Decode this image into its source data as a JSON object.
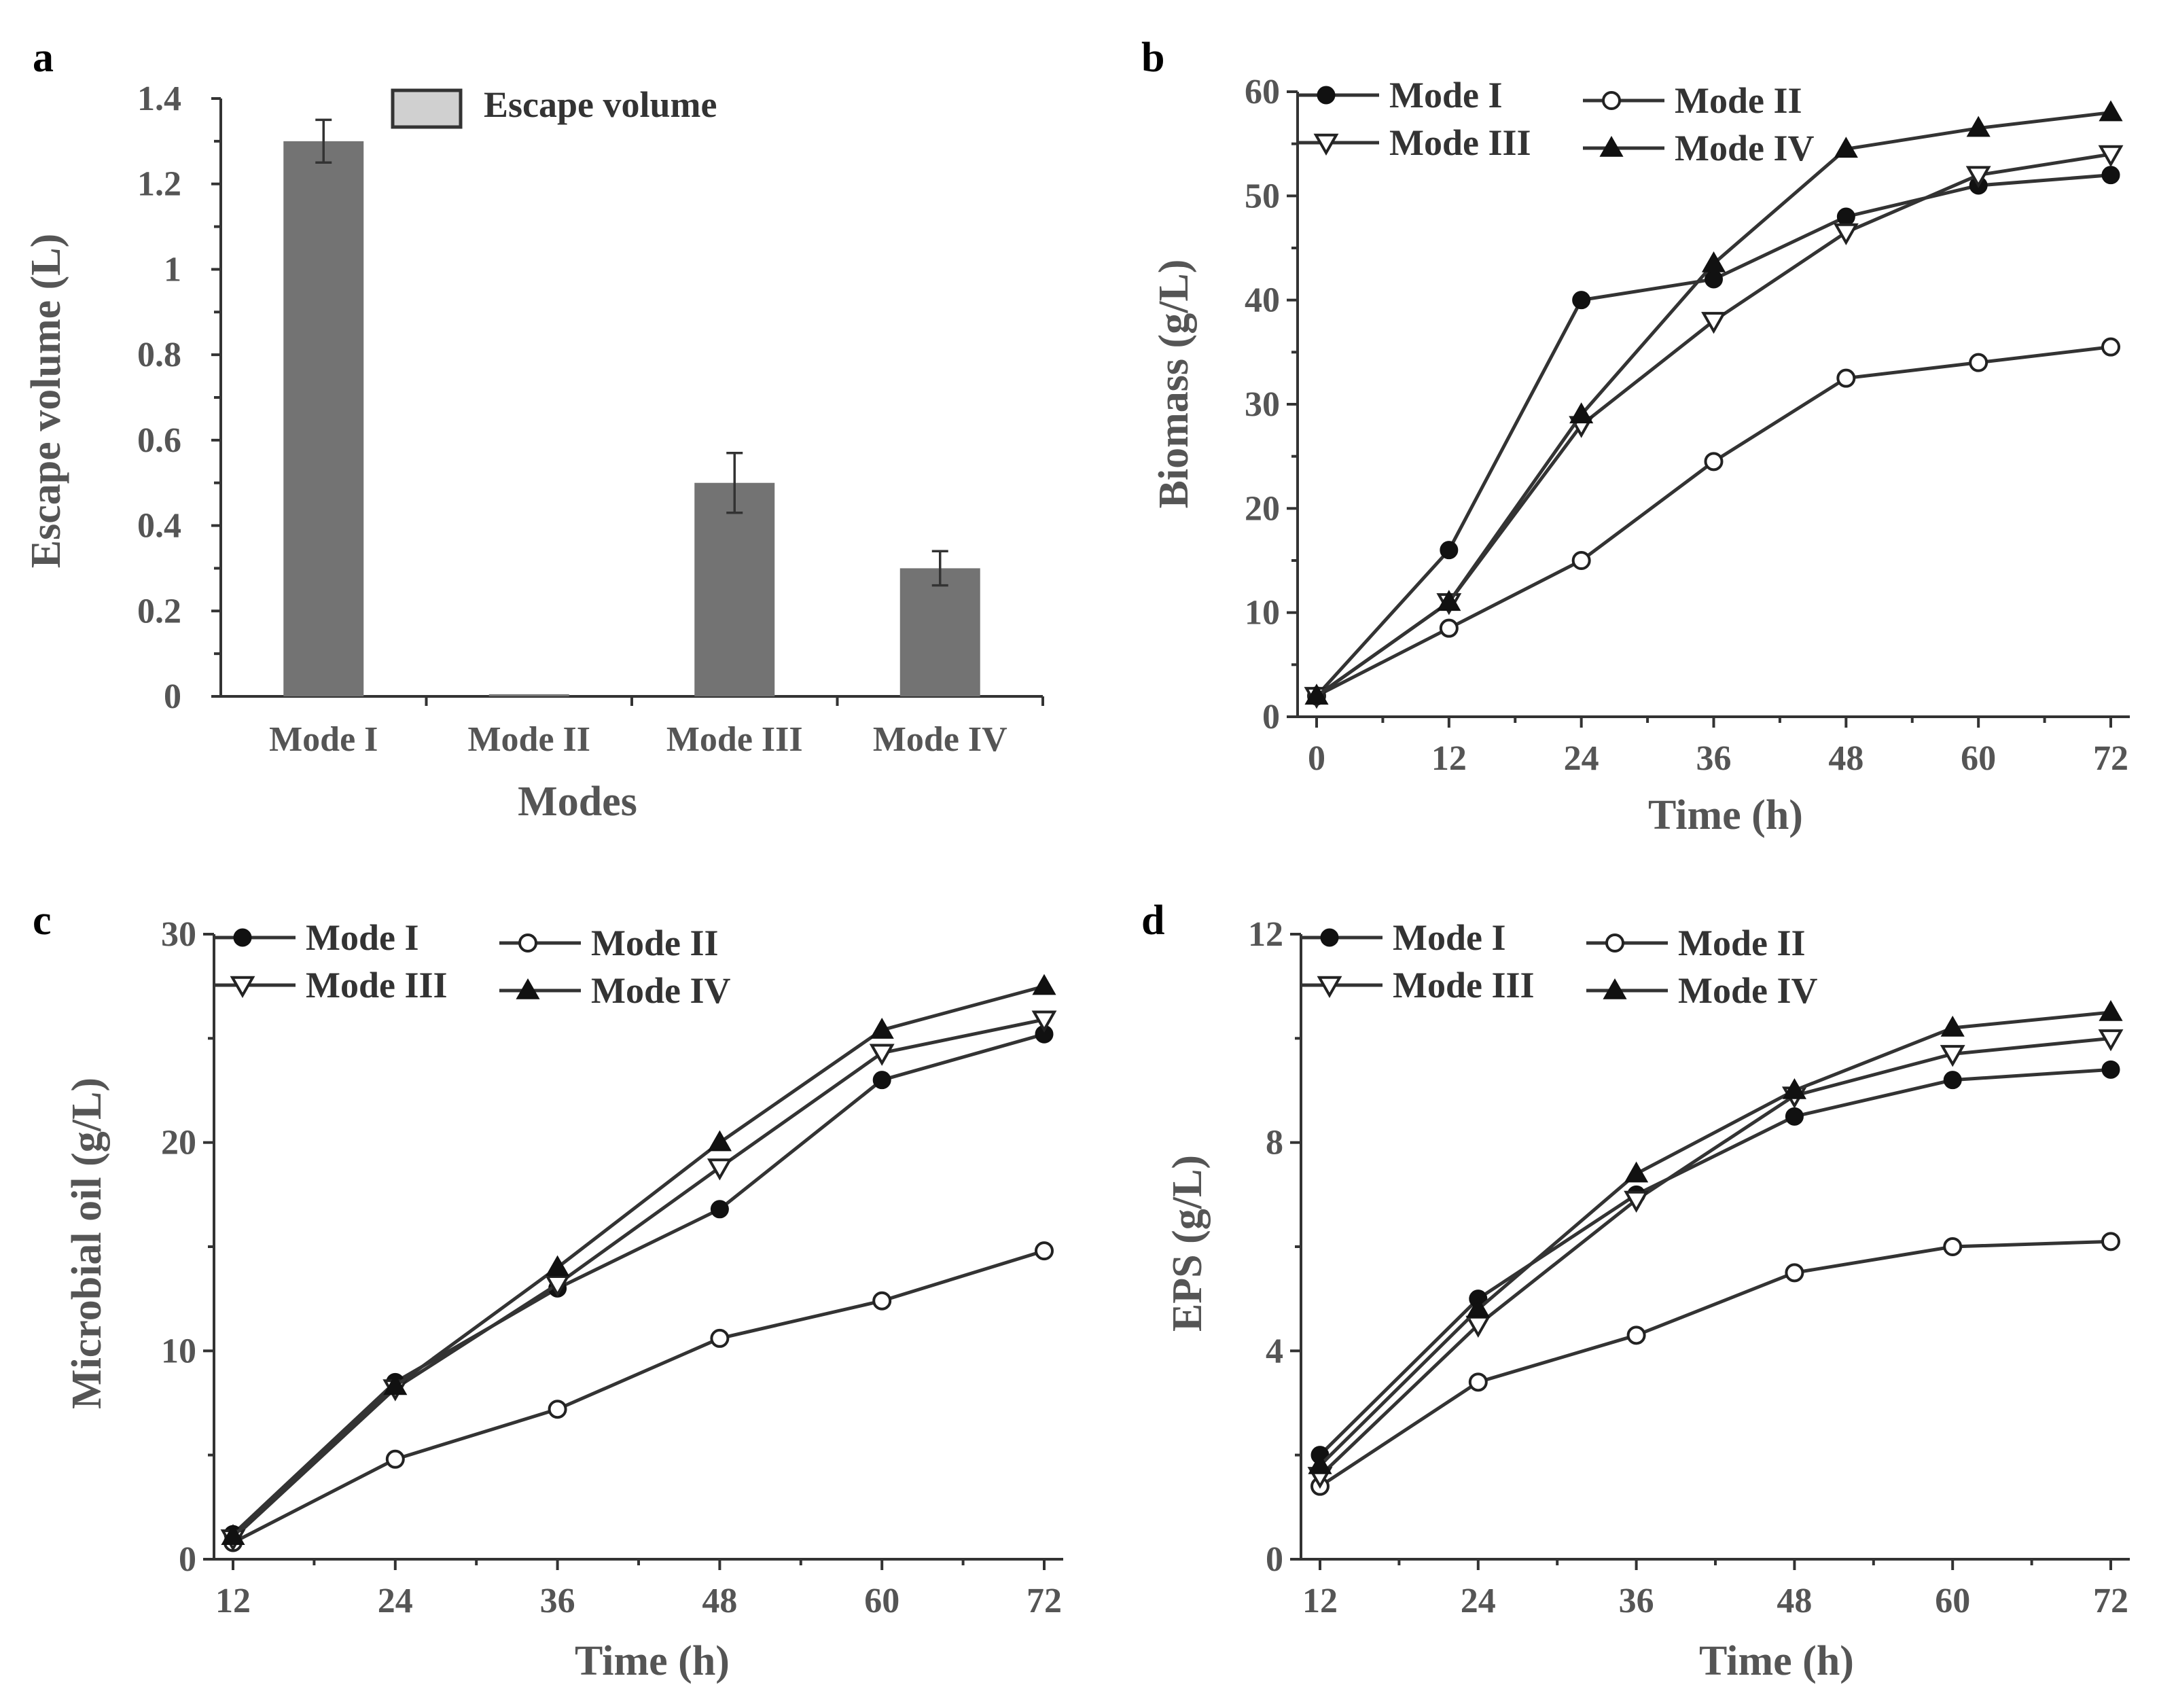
{
  "chart_data": [
    {
      "id": "a",
      "panel": "a",
      "type": "bar",
      "title": "",
      "xlabel": "Modes",
      "ylabel": "Escape volume (L)",
      "categories": [
        "Mode I",
        "Mode II",
        "Mode III",
        "Mode IV"
      ],
      "values": [
        1.3,
        0.005,
        0.5,
        0.3
      ],
      "errors": [
        0.05,
        0,
        0.07,
        0.04
      ],
      "ylim": [
        0,
        1.4
      ],
      "yticks": [
        0,
        0.2,
        0.4,
        0.6,
        0.8,
        1,
        1.2,
        1.4
      ],
      "ytick_labels": [
        "0",
        "0.2",
        "0.4",
        "0.6",
        "0.8",
        "1",
        "1.2",
        "1.4"
      ],
      "legend": [
        "Escape volume"
      ],
      "legend_position": "top"
    },
    {
      "id": "b",
      "panel": "b",
      "type": "line",
      "xlabel": "Time (h)",
      "ylabel": "Biomass (g/L)",
      "x": [
        0,
        12,
        24,
        36,
        48,
        60,
        72
      ],
      "xlim": [
        0,
        72
      ],
      "ylim": [
        0,
        60
      ],
      "xticks": [
        0,
        12,
        24,
        36,
        48,
        60,
        72
      ],
      "yticks": [
        0,
        10,
        20,
        30,
        40,
        50,
        60
      ],
      "series": [
        {
          "name": "Mode I",
          "marker": "circle-filled",
          "values": [
            2,
            16,
            40,
            42,
            48,
            51,
            52
          ]
        },
        {
          "name": "Mode II",
          "marker": "circle-open",
          "values": [
            2,
            8.5,
            15,
            24.5,
            32.5,
            34,
            35.5
          ]
        },
        {
          "name": "Mode III",
          "marker": "triangle-down-open",
          "values": [
            2,
            11,
            28,
            38,
            46.5,
            52,
            54
          ]
        },
        {
          "name": "Mode IV",
          "marker": "triangle-up-filled",
          "values": [
            2,
            11,
            29,
            43.5,
            54.5,
            56.5,
            58
          ]
        }
      ],
      "legend_position": "top-left"
    },
    {
      "id": "c",
      "panel": "c",
      "type": "line",
      "xlabel": "Time (h)",
      "ylabel": "Microbial oil (g/L)",
      "x": [
        12,
        24,
        36,
        48,
        60,
        72
      ],
      "xlim": [
        12,
        72
      ],
      "ylim": [
        0,
        30
      ],
      "xticks": [
        12,
        24,
        36,
        48,
        60,
        72
      ],
      "yticks": [
        0,
        10,
        20,
        30
      ],
      "series": [
        {
          "name": "Mode I",
          "marker": "circle-filled",
          "values": [
            1.2,
            8.5,
            13,
            16.8,
            23,
            25.2
          ]
        },
        {
          "name": "Mode II",
          "marker": "circle-open",
          "values": [
            0.8,
            4.8,
            7.2,
            10.6,
            12.4,
            14.8
          ]
        },
        {
          "name": "Mode III",
          "marker": "triangle-down-open",
          "values": [
            1,
            8.2,
            13.2,
            18.8,
            24.3,
            25.9
          ]
        },
        {
          "name": "Mode IV",
          "marker": "triangle-up-filled",
          "values": [
            1.1,
            8.3,
            14,
            20,
            25.4,
            27.5
          ]
        }
      ],
      "legend_position": "top-left"
    },
    {
      "id": "d",
      "panel": "d",
      "type": "line",
      "xlabel": "Time (h)",
      "ylabel": "EPS (g/L)",
      "x": [
        12,
        24,
        36,
        48,
        60,
        72
      ],
      "xlim": [
        12,
        72
      ],
      "ylim": [
        0,
        12
      ],
      "xticks": [
        12,
        24,
        36,
        48,
        60,
        72
      ],
      "yticks": [
        0,
        4,
        8,
        12
      ],
      "series": [
        {
          "name": "Mode I",
          "marker": "circle-filled",
          "values": [
            2,
            5,
            7,
            8.5,
            9.2,
            9.4
          ]
        },
        {
          "name": "Mode II",
          "marker": "circle-open",
          "values": [
            1.4,
            3.4,
            4.3,
            5.5,
            6,
            6.1
          ]
        },
        {
          "name": "Mode III",
          "marker": "triangle-down-open",
          "values": [
            1.6,
            4.5,
            6.9,
            8.9,
            9.7,
            10
          ]
        },
        {
          "name": "Mode IV",
          "marker": "triangle-up-filled",
          "values": [
            1.8,
            4.8,
            7.4,
            9,
            10.2,
            10.5
          ]
        }
      ],
      "legend_position": "top-left"
    }
  ]
}
